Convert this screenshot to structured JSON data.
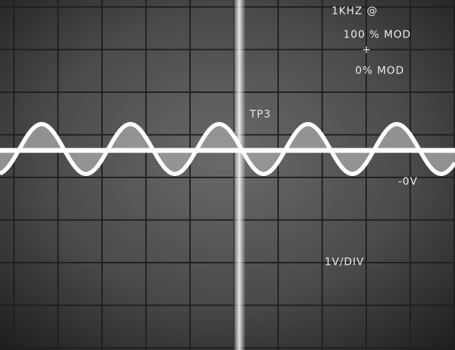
{
  "annotations": {
    "frequency": "1KHZ @",
    "mod_high": "100 % MOD",
    "plus": "+",
    "mod_low": "0% MOD",
    "test_point": "TP3",
    "zero_level": "-0V",
    "scale": "1V/DIV"
  }
}
